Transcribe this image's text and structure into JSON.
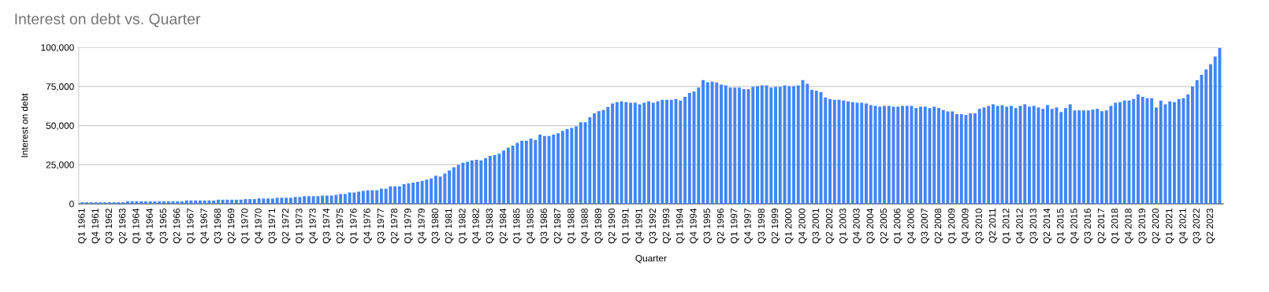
{
  "chart_data": {
    "type": "bar",
    "title": "Interest on debt vs. Quarter",
    "xlabel": "Quarter",
    "ylabel": "Interest on debt",
    "categories": [
      "Q1 1961",
      null,
      null,
      "Q4 1961",
      null,
      null,
      "Q3 1962",
      null,
      null,
      "Q2 1963",
      null,
      null,
      "Q1 1964",
      null,
      null,
      "Q4 1964",
      null,
      null,
      "Q3 1965",
      null,
      null,
      "Q2 1966",
      null,
      null,
      "Q1 1967",
      null,
      null,
      "Q4 1967",
      null,
      null,
      "Q3 1968",
      null,
      null,
      "Q2 1969",
      null,
      null,
      "Q1 1970",
      null,
      null,
      "Q4 1970",
      null,
      null,
      "Q3 1971",
      null,
      null,
      "Q2 1972",
      null,
      null,
      "Q1 1973",
      null,
      null,
      "Q4 1973",
      null,
      null,
      "Q3 1974",
      null,
      null,
      "Q2 1975",
      null,
      null,
      "Q1 1976",
      null,
      null,
      "Q4 1976",
      null,
      null,
      "Q3 1977",
      null,
      null,
      "Q2 1978",
      null,
      null,
      "Q1 1979",
      null,
      null,
      "Q4 1979",
      null,
      null,
      "Q3 1980",
      null,
      null,
      "Q2 1981",
      null,
      null,
      "Q1 1982",
      null,
      null,
      "Q4 1982",
      null,
      null,
      "Q3 1983",
      null,
      null,
      "Q2 1984",
      null,
      null,
      "Q1 1985",
      null,
      null,
      "Q4 1985",
      null,
      null,
      "Q3 1986",
      null,
      null,
      "Q2 1987",
      null,
      null,
      "Q1 1988",
      null,
      null,
      "Q4 1988",
      null,
      null,
      "Q3 1989",
      null,
      null,
      "Q2 1990",
      null,
      null,
      "Q1 1991",
      null,
      null,
      "Q4 1991",
      null,
      null,
      "Q3 1992",
      null,
      null,
      "Q2 1993",
      null,
      null,
      "Q1 1994",
      null,
      null,
      "Q4 1994",
      null,
      null,
      "Q3 1995",
      null,
      null,
      "Q2 1996",
      null,
      null,
      "Q1 1997",
      null,
      null,
      "Q4 1997",
      null,
      null,
      "Q3 1998",
      null,
      null,
      "Q2 1999",
      null,
      null,
      "Q1 2000",
      null,
      null,
      "Q4 2000",
      null,
      null,
      "Q3 2001",
      null,
      null,
      "Q2 2002",
      null,
      null,
      "Q1 2003",
      null,
      null,
      "Q4 2003",
      null,
      null,
      "Q3 2004",
      null,
      null,
      "Q2 2005",
      null,
      null,
      "Q1 2006",
      null,
      null,
      "Q4 2006",
      null,
      null,
      "Q3 2007",
      null,
      null,
      "Q2 2008",
      null,
      null,
      "Q1 2009",
      null,
      null,
      "Q4 2009",
      null,
      null,
      "Q3 2010",
      null,
      null,
      "Q2 2011",
      null,
      null,
      "Q1 2012",
      null,
      null,
      "Q4 2012",
      null,
      null,
      "Q3 2013",
      null,
      null,
      "Q2 2014",
      null,
      null,
      "Q1 2015",
      null,
      null,
      "Q4 2015",
      null,
      null,
      "Q3 2016",
      null,
      null,
      "Q2 2017",
      null,
      null,
      "Q1 2018",
      null,
      null,
      "Q4 2018",
      null,
      null,
      "Q3 2019",
      null,
      null,
      "Q2 2020",
      null,
      null,
      "Q1 2021",
      null,
      null,
      "Q4 2021",
      null,
      null,
      "Q3 2022",
      null,
      null,
      "Q2 2023",
      null,
      null
    ],
    "values": [
      1000,
      1000,
      1000,
      1000,
      1000,
      1000,
      1000,
      1000,
      1000,
      1000,
      1600,
      1600,
      1600,
      1600,
      1600,
      1600,
      1600,
      1600,
      1600,
      1600,
      1600,
      1600,
      1600,
      2100,
      2100,
      2100,
      2100,
      2100,
      2100,
      2100,
      2600,
      2600,
      2600,
      2600,
      2600,
      2600,
      3000,
      3000,
      3000,
      3500,
      3400,
      3400,
      3400,
      3900,
      3900,
      3900,
      3900,
      4400,
      4400,
      4900,
      4900,
      4900,
      4900,
      5300,
      5300,
      5300,
      5800,
      6300,
      6300,
      7300,
      7300,
      7800,
      8300,
      8700,
      8700,
      8700,
      9700,
      9700,
      11200,
      11200,
      11200,
      12500,
      13100,
      13600,
      14100,
      14600,
      15500,
      16200,
      18000,
      17500,
      19400,
      21400,
      23300,
      24900,
      26200,
      26900,
      27700,
      28200,
      27700,
      29100,
      30600,
      31100,
      32000,
      34100,
      35900,
      37200,
      39000,
      40300,
      40300,
      41700,
      40800,
      44200,
      43400,
      43400,
      44200,
      45100,
      46600,
      47700,
      48500,
      49500,
      52100,
      52100,
      55300,
      57800,
      59200,
      60000,
      61800,
      64100,
      65000,
      65500,
      65000,
      64600,
      64600,
      63600,
      64600,
      65500,
      64600,
      65500,
      66500,
      66500,
      66500,
      67000,
      66000,
      68400,
      70900,
      71800,
      74300,
      79100,
      77700,
      78000,
      77500,
      76200,
      75700,
      74300,
      74300,
      74300,
      73300,
      73300,
      74800,
      75200,
      75700,
      75700,
      74300,
      74800,
      74800,
      75700,
      75200,
      75200,
      75700,
      79100,
      76700,
      72800,
      72300,
      71400,
      68000,
      67000,
      66500,
      66500,
      66000,
      65500,
      65000,
      64600,
      64600,
      64100,
      63100,
      62600,
      62100,
      62600,
      62600,
      62100,
      62100,
      62600,
      62600,
      62600,
      61200,
      62100,
      62100,
      61200,
      62100,
      61200,
      60000,
      59100,
      59100,
      57300,
      57300,
      56800,
      57800,
      57800,
      60700,
      61600,
      62600,
      63600,
      62600,
      63100,
      62100,
      62600,
      61200,
      62600,
      63600,
      62100,
      62600,
      61600,
      60700,
      63100,
      60700,
      61600,
      58700,
      61200,
      63600,
      59700,
      59700,
      59700,
      59700,
      60200,
      60700,
      59200,
      59700,
      62600,
      64600,
      65000,
      66000,
      66000,
      67000,
      69900,
      68400,
      67500,
      67500,
      61600,
      66000,
      63600,
      65500,
      65000,
      67000,
      67500,
      69900,
      74900,
      79100,
      82500,
      85900,
      89300,
      94200,
      99500
    ],
    "color": "#4285f4",
    "ylim": [
      0,
      100000
    ],
    "yticks": [
      0,
      {
        "value": 25000,
        "label": "25,000"
      },
      {
        "value": 50000,
        "label": "50,000"
      },
      {
        "value": 75000,
        "label": "75,000"
      },
      {
        "value": 100000,
        "label": "100,000"
      }
    ],
    "grid": "y"
  }
}
